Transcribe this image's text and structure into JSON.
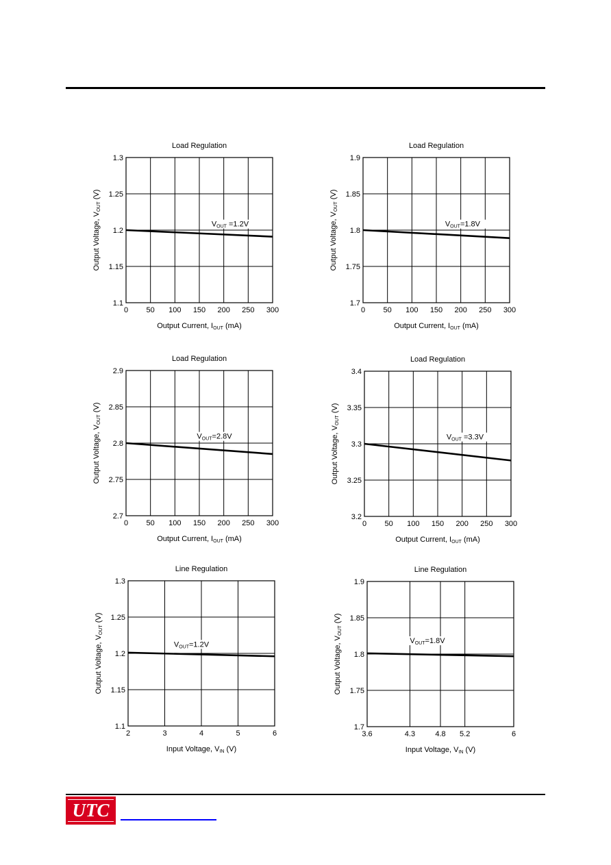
{
  "logo": {
    "text": "UTC",
    "color": "#d7001e"
  },
  "link_color": "#0000ff",
  "chart_data": [
    {
      "type": "line",
      "title": "Load  Regulation",
      "xlabel": "Output Current, I",
      "xlabel_sub": "OUT",
      "xlabel_post": " (mA)",
      "ylabel": "Output Voltage, V",
      "ylabel_sub": "OUT",
      "ylabel_post": " (V)",
      "xticks": [
        0,
        50,
        100,
        150,
        200,
        250,
        300
      ],
      "xtick_labels": [
        "0",
        "50",
        "100",
        "150",
        "200",
        "250",
        "300"
      ],
      "xlim": [
        0,
        300
      ],
      "yticks": [
        1.1,
        1.15,
        1.2,
        1.25,
        1.3
      ],
      "ytick_labels": [
        "1.1",
        "1.15",
        "1.2",
        "1.25",
        "1.3"
      ],
      "ylim": [
        1.1,
        1.3
      ],
      "grid": true,
      "series": [
        {
          "x": [
            0,
            300
          ],
          "y": [
            1.2,
            1.191
          ]
        }
      ],
      "annotation": {
        "pre": "V",
        "sub": "OUT",
        "post": " =1.2V",
        "x": 175,
        "y": 1.205
      }
    },
    {
      "type": "line",
      "title": "Load  Regulation",
      "xlabel": "Output Current, I",
      "xlabel_sub": "OUT",
      "xlabel_post": " (mA)",
      "ylabel": "Output Voltage, V",
      "ylabel_sub": "OUT",
      "ylabel_post": " (V)",
      "xticks": [
        0,
        50,
        100,
        150,
        200,
        250,
        300
      ],
      "xtick_labels": [
        "0",
        "50",
        "100",
        "150",
        "200",
        "250",
        "300"
      ],
      "xlim": [
        0,
        300
      ],
      "yticks": [
        1.7,
        1.75,
        1.8,
        1.85,
        1.9
      ],
      "ytick_labels": [
        "1.7",
        "1.75",
        "1.8",
        "1.85",
        "1.9"
      ],
      "ylim": [
        1.7,
        1.9
      ],
      "grid": true,
      "series": [
        {
          "x": [
            0,
            300
          ],
          "y": [
            1.8,
            1.789
          ]
        }
      ],
      "annotation": {
        "pre": "V",
        "sub": "OUT",
        "post": "=1.8V",
        "x": 168,
        "y": 1.805
      }
    },
    {
      "type": "line",
      "title": "Load  Regulation",
      "xlabel": "Output Current, I",
      "xlabel_sub": "OUT",
      "xlabel_post": " (mA)",
      "ylabel": "Output Voltage, V",
      "ylabel_sub": "OUT",
      "ylabel_post": " (V)",
      "xticks": [
        0,
        50,
        100,
        150,
        200,
        250,
        300
      ],
      "xtick_labels": [
        "0",
        "50",
        "100",
        "150",
        "200",
        "250",
        "300"
      ],
      "xlim": [
        0,
        300
      ],
      "yticks": [
        2.7,
        2.75,
        2.8,
        2.85,
        2.9
      ],
      "ytick_labels": [
        "2.7",
        "2.75",
        "2.8",
        "2.85",
        "2.9"
      ],
      "ylim": [
        2.7,
        2.9
      ],
      "grid": true,
      "series": [
        {
          "x": [
            0,
            300
          ],
          "y": [
            2.8,
            2.785
          ]
        }
      ],
      "annotation": {
        "pre": "V",
        "sub": "OUT",
        "post": "=2.8V",
        "x": 145,
        "y": 2.806
      }
    },
    {
      "type": "line",
      "title": "Load  Regulation",
      "xlabel": "Output Current, I",
      "xlabel_sub": "OUT",
      "xlabel_post": " (mA)",
      "ylabel": "Output Voltage, V",
      "ylabel_sub": "OUT",
      "ylabel_post": " (V)",
      "xticks": [
        0,
        50,
        100,
        150,
        200,
        250,
        300
      ],
      "xtick_labels": [
        "0",
        "50",
        "100",
        "150",
        "200",
        "250",
        "300"
      ],
      "xlim": [
        0,
        300
      ],
      "yticks": [
        3.2,
        3.25,
        3.3,
        3.35,
        3.4
      ],
      "ytick_labels": [
        "3.2",
        "3.25",
        "3.3",
        "3.35",
        "3.4"
      ],
      "ylim": [
        3.2,
        3.4
      ],
      "grid": true,
      "series": [
        {
          "x": [
            0,
            300
          ],
          "y": [
            3.3,
            3.277
          ]
        }
      ],
      "annotation": {
        "pre": "V",
        "sub": "OUT",
        "post": " =3.3V",
        "x": 168,
        "y": 3.306
      }
    },
    {
      "type": "line",
      "title": "Line  Regulation",
      "xlabel": "Input Voltage, V",
      "xlabel_sub": "IN",
      "xlabel_post": " (V)",
      "ylabel": "Output Voltage, V",
      "ylabel_sub": "OUT",
      "ylabel_post": " (V)",
      "xticks": [
        2,
        3,
        4,
        5,
        6
      ],
      "xtick_labels": [
        "2",
        "3",
        "4",
        "5",
        "6"
      ],
      "xlim": [
        2,
        6
      ],
      "yticks": [
        1.1,
        1.15,
        1.2,
        1.25,
        1.3
      ],
      "ytick_labels": [
        "1.1",
        "1.15",
        "1.2",
        "1.25",
        "1.3"
      ],
      "ylim": [
        1.1,
        1.3
      ],
      "grid": true,
      "series": [
        {
          "x": [
            2,
            6
          ],
          "y": [
            1.201,
            1.196
          ]
        }
      ],
      "annotation": {
        "pre": "V",
        "sub": "OUT",
        "post": "=1.2V",
        "x": 3.25,
        "y": 1.209
      }
    },
    {
      "type": "line",
      "title": "Line  Regulation",
      "xlabel": "Input Voltage, V",
      "xlabel_sub": "IN",
      "xlabel_post": " (V)",
      "ylabel": "Output Voltage, V",
      "ylabel_sub": "OUT",
      "ylabel_post": " (V)",
      "xticks": [
        3.6,
        4.3,
        4.8,
        5.2,
        6
      ],
      "xtick_labels": [
        "3.6",
        "4.3",
        "4.8",
        "5.2",
        "6"
      ],
      "xlim": [
        3.6,
        6
      ],
      "yticks": [
        1.7,
        1.75,
        1.8,
        1.85,
        1.9
      ],
      "ytick_labels": [
        "1.7",
        "1.75",
        "1.8",
        "1.85",
        "1.9"
      ],
      "ylim": [
        1.7,
        1.9
      ],
      "grid": true,
      "series": [
        {
          "x": [
            3.6,
            6
          ],
          "y": [
            1.801,
            1.797
          ]
        }
      ],
      "annotation": {
        "pre": "V",
        "sub": "OUT",
        "post": "=1.8V",
        "x": 4.3,
        "y": 1.815
      }
    }
  ]
}
